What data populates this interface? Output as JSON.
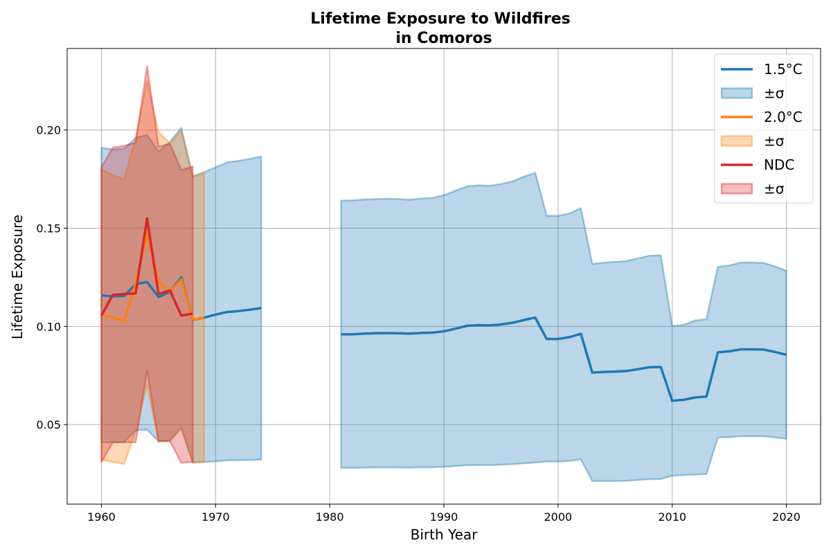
{
  "chart_data": {
    "type": "line",
    "title_line1": "Lifetime Exposure to Wildfires",
    "title_line2": "in Comoros",
    "xlabel": "Birth Year",
    "ylabel": "Lifetime Exposure",
    "xlim": [
      1957,
      2023
    ],
    "ylim": [
      0.0095,
      0.2415
    ],
    "xticks": [
      1960,
      1970,
      1980,
      1990,
      2000,
      2010,
      2020
    ],
    "yticks": [
      0.05,
      0.1,
      0.15,
      0.2
    ],
    "ytick_labels": [
      "0.05",
      "0.10",
      "0.15",
      "0.20"
    ],
    "grid": true,
    "legend_position": "top-right",
    "series": [
      {
        "name": "1.5°C",
        "band_label": "±σ",
        "color": "#1f77b4",
        "segments": [
          {
            "x": [
              1960,
              1961,
              1962,
              1963,
              1964,
              1965,
              1966,
              1967,
              1968,
              1969,
              1970,
              1971,
              1972,
              1973,
              1974
            ],
            "mean": [
              0.1158,
              0.1153,
              0.1155,
              0.1215,
              0.1226,
              0.115,
              0.1175,
              0.125,
              0.1033,
              0.1045,
              0.106,
              0.1073,
              0.1078,
              0.1085,
              0.1093
            ],
            "upper": [
              0.191,
              0.19,
              0.1905,
              0.196,
              0.1975,
              0.189,
              0.194,
              0.201,
              0.1765,
              0.1785,
              0.181,
              0.1835,
              0.1843,
              0.1853,
              0.1865
            ],
            "lower": [
              0.041,
              0.041,
              0.0412,
              0.047,
              0.0475,
              0.0415,
              0.0418,
              0.0485,
              0.0308,
              0.031,
              0.0313,
              0.0318,
              0.0319,
              0.032,
              0.0322
            ]
          },
          {
            "x": [
              1981,
              1982,
              1983,
              1984,
              1985,
              1986,
              1987,
              1988,
              1989,
              1990,
              1991,
              1992,
              1993,
              1994,
              1995,
              1996,
              1997,
              1998,
              1999,
              2000,
              2001,
              2002,
              2003,
              2004,
              2005,
              2006,
              2007,
              2008,
              2009,
              2010,
              2011,
              2012,
              2013,
              2014,
              2015,
              2016,
              2017,
              2018,
              2019,
              2020
            ],
            "mean": [
              0.096,
              0.096,
              0.0963,
              0.0965,
              0.0966,
              0.0965,
              0.0963,
              0.0967,
              0.0968,
              0.0975,
              0.0988,
              0.1003,
              0.1006,
              0.1005,
              0.101,
              0.1018,
              0.1032,
              0.1045,
              0.0936,
              0.0936,
              0.0945,
              0.0962,
              0.0765,
              0.0768,
              0.077,
              0.0773,
              0.0782,
              0.0792,
              0.0793,
              0.0621,
              0.0626,
              0.0638,
              0.0643,
              0.0868,
              0.0873,
              0.0883,
              0.0883,
              0.0882,
              0.087,
              0.0855
            ],
            "upper": [
              0.164,
              0.1642,
              0.1646,
              0.1648,
              0.165,
              0.1648,
              0.1645,
              0.1651,
              0.1654,
              0.1668,
              0.169,
              0.1713,
              0.1718,
              0.1716,
              0.1725,
              0.1738,
              0.1762,
              0.1782,
              0.1563,
              0.1563,
              0.1575,
              0.1602,
              0.1318,
              0.1324,
              0.1328,
              0.1333,
              0.1346,
              0.136,
              0.1362,
              0.1002,
              0.1008,
              0.103,
              0.1037,
              0.1303,
              0.131,
              0.1325,
              0.1325,
              0.1323,
              0.1305,
              0.1283
            ],
            "lower": [
              0.028,
              0.028,
              0.0281,
              0.0282,
              0.0282,
              0.0282,
              0.0281,
              0.0283,
              0.0283,
              0.0285,
              0.0289,
              0.0293,
              0.0294,
              0.0294,
              0.0296,
              0.0298,
              0.0303,
              0.0307,
              0.0312,
              0.0312,
              0.0315,
              0.0323,
              0.0212,
              0.0213,
              0.0213,
              0.0214,
              0.0218,
              0.0222,
              0.0223,
              0.024,
              0.0243,
              0.0246,
              0.0248,
              0.0435,
              0.0436,
              0.0441,
              0.0441,
              0.0441,
              0.0435,
              0.0428
            ]
          }
        ]
      },
      {
        "name": "2.0°C",
        "band_label": "±σ",
        "color": "#ff7f0e",
        "segments": [
          {
            "x": [
              1960,
              1961,
              1962,
              1963,
              1964,
              1965,
              1966,
              1967,
              1968,
              1969
            ],
            "mean": [
              0.1063,
              0.1045,
              0.1028,
              0.122,
              0.1475,
              0.123,
              0.1175,
              0.124,
              0.1035,
              0.1045
            ],
            "upper": [
              0.18,
              0.177,
              0.175,
              0.196,
              0.225,
              0.199,
              0.193,
              0.1995,
              0.176,
              0.178
            ],
            "lower": [
              0.032,
              0.031,
              0.03,
              0.047,
              0.07,
              0.0415,
              0.042,
              0.048,
              0.0305,
              0.031
            ]
          }
        ]
      },
      {
        "name": "NDC",
        "band_label": "±σ",
        "color": "#d62728",
        "segments": [
          {
            "x": [
              1960,
              1961,
              1962,
              1963,
              1964,
              1965,
              1966,
              1967,
              1968
            ],
            "mean": [
              0.1055,
              0.116,
              0.1165,
              0.1168,
              0.155,
              0.1165,
              0.1183,
              0.1055,
              0.1065
            ],
            "upper": [
              0.181,
              0.191,
              0.192,
              0.1935,
              0.2325,
              0.1915,
              0.193,
              0.1795,
              0.1815
            ],
            "lower": [
              0.031,
              0.041,
              0.041,
              0.041,
              0.0775,
              0.0415,
              0.0415,
              0.0305,
              0.031
            ]
          }
        ]
      }
    ]
  }
}
